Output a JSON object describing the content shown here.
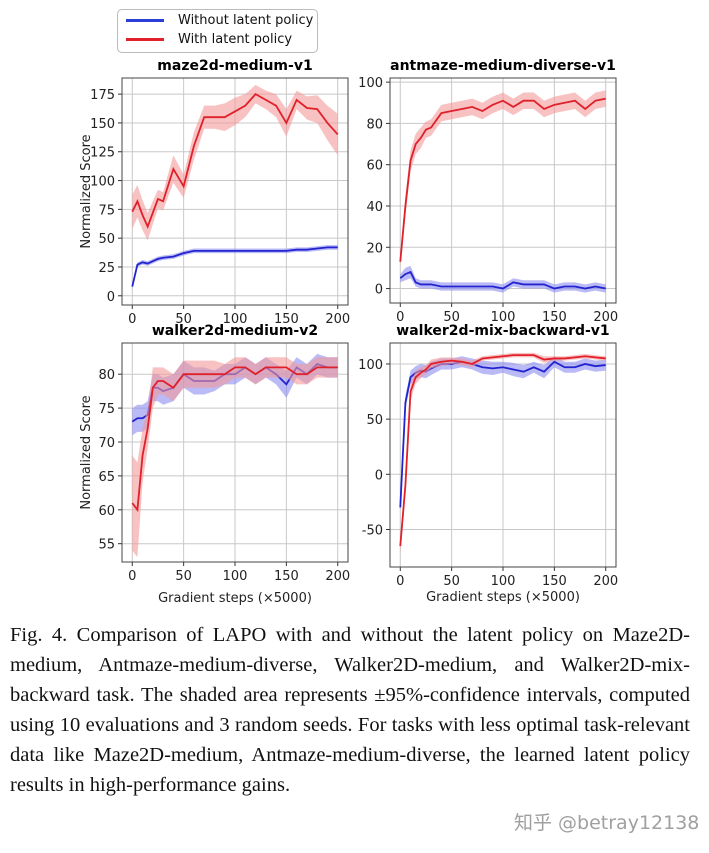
{
  "legend": {
    "items": [
      {
        "label": "Without latent policy",
        "color": "#2b3fd6"
      },
      {
        "label": "With latent policy",
        "color": "#e0202a"
      }
    ],
    "placement": "top-left"
  },
  "colors": {
    "without": "#2323d0",
    "with": "#e0202a",
    "without_band": "#8c8cf0",
    "with_band": "#f39a9a"
  },
  "chart_data": [
    {
      "type": "line",
      "title": "maze2d-medium-v1",
      "ylabel": "Normalized Score",
      "xlabel": "",
      "xlim": [
        -10,
        210
      ],
      "ylim": [
        -8,
        189
      ],
      "xticks": [
        0,
        50,
        100,
        150,
        200
      ],
      "yticks": [
        0,
        25,
        50,
        75,
        100,
        125,
        150,
        175
      ],
      "grid": true,
      "x": [
        0,
        5,
        10,
        15,
        20,
        25,
        30,
        40,
        50,
        60,
        70,
        80,
        90,
        100,
        110,
        120,
        130,
        140,
        150,
        160,
        170,
        180,
        190,
        200
      ],
      "series": [
        {
          "name": "Without latent policy",
          "values": [
            8,
            27,
            29,
            28,
            30,
            32,
            33,
            34,
            37,
            39,
            39,
            39,
            39,
            39,
            39,
            39,
            39,
            39,
            39,
            40,
            40,
            41,
            42,
            42
          ],
          "ci": [
            2,
            2,
            2,
            2,
            2,
            2,
            2,
            2,
            2,
            2,
            2,
            2,
            2,
            2,
            2,
            2,
            2,
            2,
            2,
            2,
            2,
            2,
            2,
            2
          ]
        },
        {
          "name": "With latent policy",
          "values": [
            73,
            82,
            70,
            60,
            72,
            84,
            82,
            110,
            95,
            130,
            155,
            155,
            155,
            160,
            165,
            175,
            170,
            165,
            150,
            170,
            163,
            162,
            150,
            140
          ],
          "ci": [
            15,
            14,
            13,
            12,
            10,
            8,
            8,
            12,
            10,
            12,
            10,
            10,
            12,
            12,
            10,
            8,
            8,
            10,
            12,
            8,
            10,
            12,
            15,
            18
          ]
        }
      ]
    },
    {
      "type": "line",
      "title": "antmaze-medium-diverse-v1",
      "ylabel": "",
      "xlabel": "",
      "xlim": [
        -10,
        210
      ],
      "ylim": [
        -7,
        102
      ],
      "xticks": [
        0,
        50,
        100,
        150,
        200
      ],
      "yticks": [
        0,
        20,
        40,
        60,
        80,
        100
      ],
      "grid": true,
      "x": [
        0,
        5,
        10,
        15,
        20,
        25,
        30,
        40,
        50,
        60,
        70,
        80,
        90,
        100,
        110,
        120,
        130,
        140,
        150,
        160,
        170,
        180,
        190,
        200
      ],
      "series": [
        {
          "name": "Without latent policy",
          "values": [
            5,
            7,
            8,
            3,
            2,
            2,
            2,
            1,
            1,
            1,
            1,
            1,
            1,
            0,
            3,
            2,
            2,
            2,
            0,
            1,
            1,
            0,
            1,
            0
          ],
          "ci": [
            2,
            3,
            3,
            2,
            2,
            2,
            2,
            2,
            2,
            2,
            2,
            2,
            2,
            2,
            2,
            2,
            2,
            2,
            2,
            2,
            2,
            2,
            2,
            2
          ]
        },
        {
          "name": "With latent policy",
          "values": [
            13,
            40,
            62,
            70,
            73,
            77,
            78,
            85,
            86,
            87,
            88,
            86,
            89,
            91,
            88,
            91,
            91,
            87,
            89,
            90,
            91,
            87,
            91,
            92
          ],
          "ci": [
            3,
            5,
            5,
            5,
            5,
            4,
            4,
            4,
            4,
            4,
            4,
            4,
            4,
            4,
            4,
            4,
            4,
            4,
            4,
            4,
            4,
            4,
            4,
            4
          ]
        }
      ]
    },
    {
      "type": "line",
      "title": "walker2d-medium-v2",
      "ylabel": "Normalized Score",
      "xlabel": "Gradient steps (×5000)",
      "xlim": [
        -10,
        210
      ],
      "ylim": [
        52.3,
        84.6
      ],
      "xticks": [
        0,
        50,
        100,
        150,
        200
      ],
      "yticks": [
        55,
        60,
        65,
        70,
        75,
        80
      ],
      "grid": true,
      "x": [
        0,
        5,
        10,
        15,
        20,
        25,
        30,
        40,
        50,
        60,
        70,
        80,
        90,
        100,
        110,
        120,
        130,
        140,
        150,
        160,
        170,
        180,
        190,
        200
      ],
      "series": [
        {
          "name": "Without latent policy",
          "values": [
            73,
            73.5,
            73.5,
            74,
            78,
            78,
            77.5,
            78,
            80,
            79,
            79,
            79,
            80,
            80,
            81,
            80,
            81,
            80,
            78.5,
            81,
            80,
            81.5,
            81,
            81
          ],
          "ci": [
            2,
            2,
            2,
            2,
            2,
            2,
            2,
            2,
            2,
            2,
            2,
            1.5,
            1.5,
            1.5,
            1.5,
            1.5,
            1.5,
            1.5,
            2,
            1.5,
            1.5,
            1.5,
            1.5,
            1.5
          ]
        },
        {
          "name": "With latent policy",
          "values": [
            61,
            60,
            68,
            72,
            78,
            79,
            79,
            78,
            80,
            80,
            80,
            80,
            80,
            81,
            81,
            80,
            81,
            81,
            81,
            80,
            80,
            81,
            81,
            81
          ],
          "ci": [
            7,
            7,
            4,
            3,
            3,
            2,
            2,
            2,
            2,
            2,
            2,
            2,
            1.5,
            1.5,
            1.5,
            1.5,
            1.5,
            1.5,
            1.5,
            1.5,
            1.5,
            1.5,
            1.5,
            1.5
          ]
        }
      ]
    },
    {
      "type": "line",
      "title": "walker2d-mix-backward-v1",
      "ylabel": "",
      "xlabel": "Gradient steps (×5000)",
      "xlim": [
        -10,
        210
      ],
      "ylim": [
        -84,
        119
      ],
      "xticks": [
        0,
        50,
        100,
        150,
        200
      ],
      "yticks": [
        -50,
        0,
        50,
        100
      ],
      "grid": true,
      "x": [
        0,
        5,
        10,
        15,
        20,
        25,
        30,
        40,
        50,
        60,
        70,
        80,
        90,
        100,
        110,
        120,
        130,
        140,
        150,
        160,
        170,
        180,
        190,
        200
      ],
      "series": [
        {
          "name": "Without latent policy",
          "values": [
            -30,
            65,
            88,
            92,
            94,
            93,
            96,
            100,
            100,
            102,
            100,
            97,
            96,
            97,
            95,
            93,
            97,
            93,
            102,
            97,
            97,
            100,
            98,
            99
          ],
          "ci": [
            4,
            6,
            6,
            6,
            6,
            6,
            6,
            5,
            5,
            5,
            5,
            6,
            6,
            5,
            6,
            6,
            5,
            6,
            5,
            5,
            5,
            5,
            5,
            5
          ]
        },
        {
          "name": "With latent policy",
          "values": [
            -65,
            -10,
            75,
            88,
            92,
            95,
            100,
            102,
            103,
            102,
            100,
            105,
            106,
            107,
            108,
            108,
            108,
            104,
            105,
            105,
            106,
            107,
            106,
            105
          ],
          "ci": [
            8,
            8,
            8,
            6,
            5,
            4,
            4,
            4,
            3,
            3,
            3,
            2,
            2,
            2,
            2,
            2,
            2,
            3,
            2,
            2,
            2,
            2,
            2,
            2
          ]
        }
      ]
    }
  ],
  "caption": "Fig. 4.  Comparison of LAPO with and without the latent policy on Maze2D-medium, Antmaze-medium-diverse, Walker2D-medium, and Walker2D-mix-backward task.  The shaded area represents ±95%-confidence intervals, computed using 10 evaluations and 3 random seeds.  For tasks with less optimal task-relevant data like Maze2D-medium, Antmaze-medium-diverse, the learned latent policy results in high-performance gains.",
  "watermark": "知乎 @betray12138"
}
